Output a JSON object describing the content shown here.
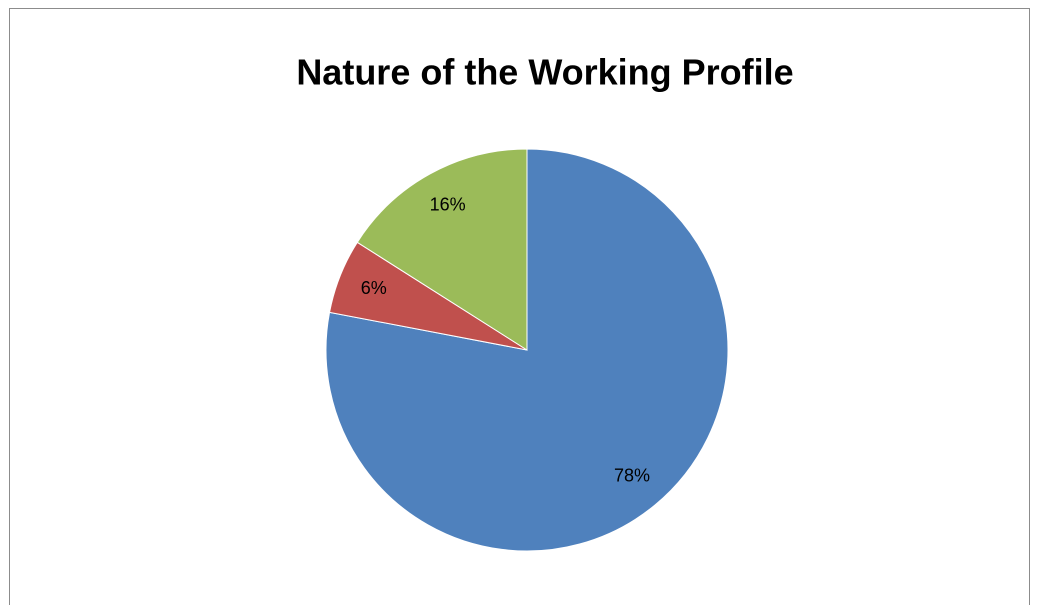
{
  "chart_data": {
    "type": "pie",
    "title": "Nature of the Working Profile",
    "values": [
      78,
      6,
      16
    ],
    "value_labels": [
      "78%",
      "6%",
      "16%"
    ],
    "colors": [
      "#4f81bd",
      "#c0504d",
      "#9bbb59"
    ]
  }
}
